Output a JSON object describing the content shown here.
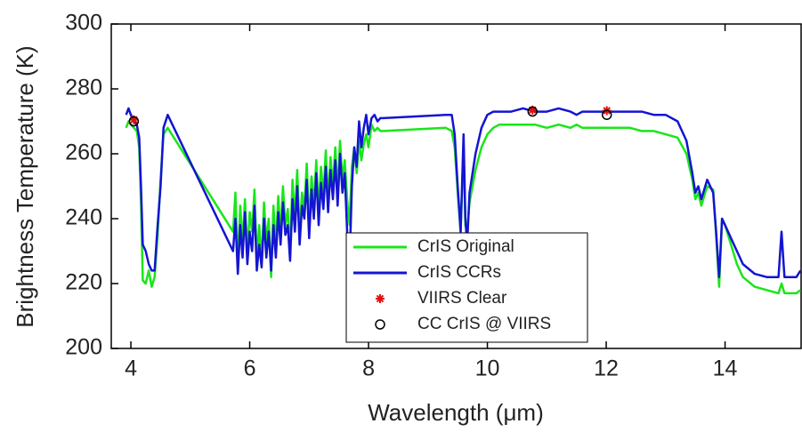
{
  "chart_data": {
    "type": "line",
    "xlabel": "Wavelength (μm)",
    "ylabel": "Brightness Temperature (K)",
    "xlim": [
      3.67,
      15.28
    ],
    "ylim": [
      200,
      300
    ],
    "xticks": [
      4,
      6,
      8,
      10,
      12,
      14
    ],
    "yticks": [
      200,
      220,
      240,
      260,
      280,
      300
    ],
    "grid": false,
    "legend": "lower center",
    "x": [
      3.92,
      3.96,
      4.0,
      4.05,
      4.1,
      4.14,
      4.17,
      4.2,
      4.25,
      4.3,
      4.35,
      4.4,
      4.45,
      4.5,
      4.55,
      4.62,
      5.72,
      5.76,
      5.8,
      5.84,
      5.88,
      5.92,
      5.96,
      6.0,
      6.04,
      6.08,
      6.12,
      6.16,
      6.2,
      6.24,
      6.28,
      6.32,
      6.36,
      6.4,
      6.44,
      6.48,
      6.52,
      6.56,
      6.6,
      6.64,
      6.68,
      6.72,
      6.76,
      6.8,
      6.84,
      6.88,
      6.92,
      6.96,
      7.0,
      7.04,
      7.08,
      7.12,
      7.16,
      7.2,
      7.24,
      7.28,
      7.32,
      7.36,
      7.4,
      7.44,
      7.48,
      7.52,
      7.56,
      7.6,
      7.64,
      7.68,
      7.72,
      7.76,
      7.8,
      7.84,
      7.88,
      7.92,
      7.96,
      8.0,
      8.05,
      8.1,
      8.15,
      8.2,
      8.25,
      9.3,
      9.4,
      9.45,
      9.5,
      9.55,
      9.6,
      9.63,
      9.66,
      9.7,
      9.8,
      9.9,
      10.0,
      10.1,
      10.2,
      10.4,
      10.6,
      10.8,
      11.0,
      11.2,
      11.4,
      11.5,
      11.6,
      11.8,
      12.0,
      12.2,
      12.4,
      12.6,
      12.8,
      13.0,
      13.2,
      13.35,
      13.45,
      13.5,
      13.55,
      13.6,
      13.7,
      13.8,
      13.85,
      13.9,
      13.95,
      14.0,
      14.1,
      14.2,
      14.3,
      14.5,
      14.7,
      14.9,
      14.95,
      15.0,
      15.05,
      15.2,
      15.27
    ],
    "series": [
      {
        "name": "CrIS Original",
        "color": "#19e619",
        "marker": "line",
        "values": [
          268,
          270,
          269,
          268,
          267,
          262,
          245,
          221,
          220,
          224,
          219,
          222,
          235,
          252,
          266,
          268,
          236,
          248,
          225,
          244,
          232,
          246,
          229,
          242,
          236,
          249,
          228,
          238,
          226,
          245,
          233,
          240,
          222,
          244,
          231,
          247,
          235,
          250,
          238,
          243,
          229,
          252,
          240,
          255,
          236,
          248,
          243,
          257,
          238,
          253,
          244,
          258,
          242,
          256,
          247,
          261,
          245,
          259,
          250,
          262,
          248,
          264,
          252,
          258,
          246,
          238,
          256,
          262,
          254,
          264,
          258,
          263,
          266,
          262,
          269,
          267,
          268,
          267,
          267,
          268,
          267,
          262,
          248,
          236,
          262,
          238,
          236,
          245,
          255,
          262,
          266,
          268,
          269,
          269,
          269,
          269,
          268,
          269,
          268,
          269,
          268,
          268,
          268,
          268,
          268,
          267,
          267,
          266,
          265,
          260,
          252,
          246,
          248,
          244,
          250,
          249,
          235,
          219,
          240,
          238,
          232,
          226,
          222,
          219,
          218,
          217,
          220,
          217,
          217,
          217,
          218
        ]
      },
      {
        "name": "CrIS CCRs",
        "color": "#1414d2",
        "marker": "line",
        "values": [
          272,
          274,
          272,
          270,
          269,
          265,
          250,
          232,
          230,
          226,
          224,
          224,
          238,
          250,
          268,
          272,
          230,
          240,
          223,
          238,
          228,
          242,
          226,
          236,
          230,
          244,
          224,
          232,
          225,
          240,
          228,
          236,
          224,
          238,
          228,
          242,
          232,
          245,
          235,
          238,
          227,
          246,
          236,
          250,
          232,
          244,
          240,
          252,
          234,
          249,
          240,
          254,
          238,
          251,
          243,
          256,
          242,
          255,
          246,
          258,
          244,
          260,
          248,
          254,
          236,
          226,
          250,
          262,
          256,
          270,
          262,
          268,
          272,
          266,
          271,
          272,
          270,
          271,
          271,
          272,
          272,
          266,
          250,
          236,
          266,
          240,
          232,
          248,
          260,
          268,
          272,
          273,
          273,
          273,
          274,
          273,
          273,
          274,
          273,
          272,
          273,
          273,
          273,
          273,
          273,
          273,
          272,
          272,
          270,
          264,
          254,
          248,
          250,
          246,
          252,
          248,
          236,
          222,
          240,
          238,
          234,
          230,
          226,
          223,
          222,
          222,
          236,
          222,
          222,
          222,
          224
        ]
      },
      {
        "name": "VIIRS Clear",
        "color": "#e01010",
        "marker": "star",
        "x": [
          4.05,
          10.76,
          12.01
        ],
        "values": [
          270.5,
          273.5,
          273.3
        ]
      },
      {
        "name": "CC CrIS @ VIIRS",
        "color": "#000000",
        "marker": "circle",
        "x": [
          4.05,
          10.76,
          12.01
        ],
        "values": [
          270,
          273,
          272
        ]
      }
    ]
  }
}
